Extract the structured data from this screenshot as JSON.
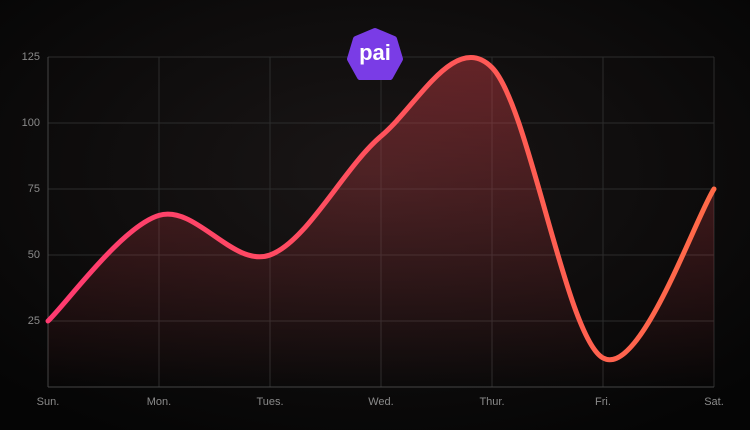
{
  "logo": "pai",
  "chart_data": {
    "type": "line",
    "categories": [
      "Sun.",
      "Mon.",
      "Tues.",
      "Wed.",
      "Thur.",
      "Fri.",
      "Sat."
    ],
    "values": [
      25,
      65,
      50,
      95,
      121,
      11,
      75
    ],
    "colors": [
      "#ff3a70",
      "#ff6a48"
    ],
    "ylim": [
      0,
      125
    ],
    "yticks": [
      25,
      50,
      75,
      100,
      125
    ],
    "grid": true
  }
}
